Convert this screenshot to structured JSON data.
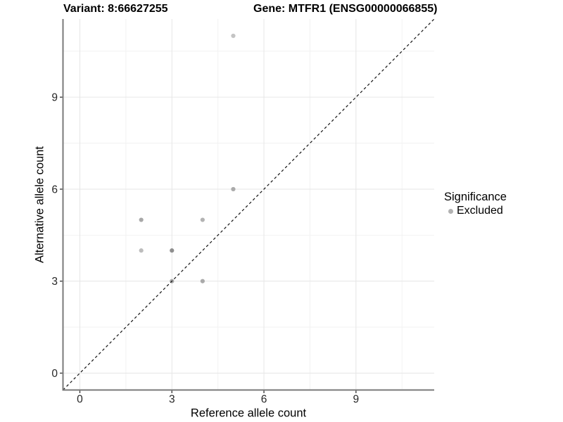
{
  "titles": {
    "variant": "Variant: 8:66627255",
    "gene": "Gene: MTFR1 (ENSG00000066855)"
  },
  "chart_data": {
    "type": "scatter",
    "title": "Variant: 8:66627255   Gene: MTFR1 (ENSG00000066855)",
    "xlabel": "Reference allele count",
    "ylabel": "Alternative allele count",
    "xlim": [
      -0.55,
      11.55
    ],
    "ylim": [
      -0.55,
      11.55
    ],
    "xticks": [
      0,
      3,
      6,
      9
    ],
    "yticks": [
      0,
      3,
      6,
      9
    ],
    "xticks_minor": [
      1.5,
      4.5,
      7.5,
      10.5
    ],
    "yticks_minor": [
      1.5,
      4.5,
      7.5,
      10.5
    ],
    "grid": true,
    "identity_line": {
      "type": "y=x",
      "style": "dashed",
      "color": "#111111"
    },
    "series": [
      {
        "name": "Excluded",
        "points": [
          {
            "x": 5,
            "y": 11,
            "color": "#c4c4c4"
          },
          {
            "x": 5,
            "y": 6,
            "color": "#aaaaaa"
          },
          {
            "x": 2,
            "y": 5,
            "color": "#a8a8a8"
          },
          {
            "x": 4,
            "y": 5,
            "color": "#b3b3b3"
          },
          {
            "x": 2,
            "y": 4,
            "color": "#bdbdbd"
          },
          {
            "x": 3,
            "y": 4,
            "color": "#8f8f8f"
          },
          {
            "x": 3,
            "y": 3,
            "color": "#a8a8a8"
          },
          {
            "x": 4,
            "y": 3,
            "color": "#aaaaaa"
          }
        ]
      }
    ],
    "legend": {
      "title": "Significance",
      "position": "right",
      "items": [
        {
          "label": "Excluded",
          "color": "#b2b2b2"
        }
      ]
    },
    "colors": {
      "background": "#ffffff",
      "grid_major": "#e6e6e6",
      "grid_minor": "#f2f2f2",
      "axis_line": "#7a7a7a",
      "tick_mark": "#404040",
      "tick_label": "#262626"
    }
  }
}
